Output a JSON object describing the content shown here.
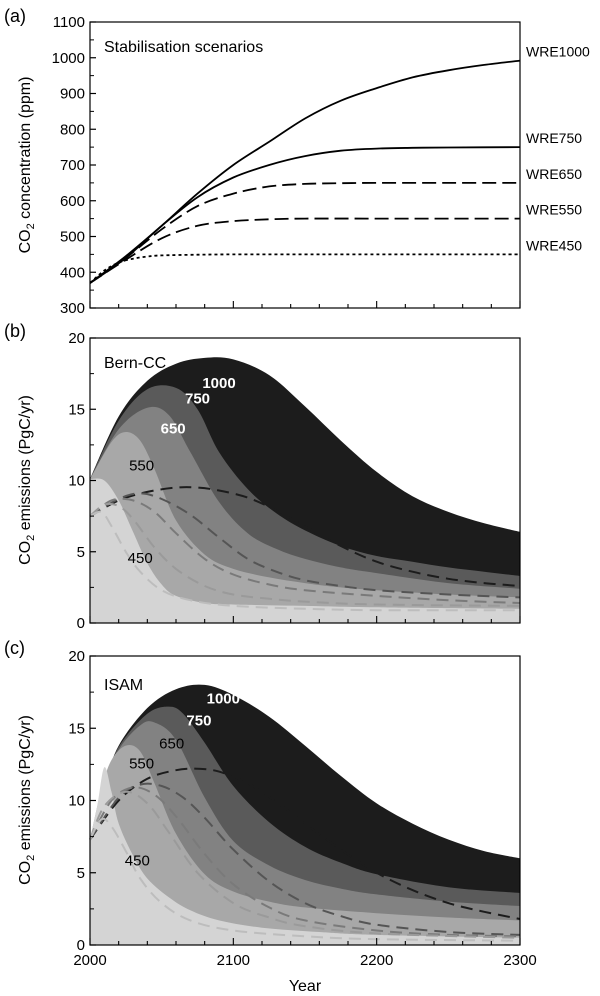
{
  "colors": {
    "band_1000": "#1c1c1c",
    "band_750": "#5a5a5a",
    "band_650": "#828282",
    "band_550": "#a8a8a8",
    "band_450": "#d4d4d4",
    "dash_1000": "#1c1c1c",
    "dash_750": "#555555",
    "dash_650": "#7a7a7a",
    "dash_550": "#9a9a9a",
    "dash_450": "#bdbdbd"
  },
  "chart_data": [
    {
      "panel": "(a)",
      "type": "line",
      "title": "Stabilisation scenarios",
      "ylabel": "CO2 concentration (ppm)",
      "ylabel_main": "CO",
      "ylabel_sub": "2",
      "ylabel_rest": " concentration (ppm)",
      "ylim": [
        300,
        1100
      ],
      "yticks": [
        "300",
        "400",
        "500",
        "600",
        "700",
        "800",
        "900",
        "1000",
        "1100"
      ],
      "xlim": [
        2000,
        2300
      ],
      "grid": false,
      "series": [
        {
          "name": "WRE1000",
          "style": "solid",
          "x": [
            2000,
            2025,
            2050,
            2075,
            2100,
            2125,
            2150,
            2175,
            2200,
            2225,
            2250,
            2275,
            2300
          ],
          "values": [
            370,
            445,
            530,
            620,
            700,
            765,
            830,
            880,
            915,
            945,
            965,
            980,
            992
          ]
        },
        {
          "name": "WRE750",
          "style": "solid",
          "x": [
            2000,
            2025,
            2050,
            2075,
            2100,
            2125,
            2150,
            2175,
            2200,
            2225,
            2250,
            2300
          ],
          "values": [
            370,
            440,
            530,
            610,
            665,
            700,
            725,
            740,
            746,
            748,
            749,
            750
          ]
        },
        {
          "name": "WRE650",
          "style": "dashed",
          "x": [
            2000,
            2025,
            2050,
            2075,
            2100,
            2125,
            2150,
            2175,
            2200,
            2250,
            2300
          ],
          "values": [
            370,
            440,
            520,
            585,
            620,
            640,
            647,
            649,
            650,
            650,
            650
          ]
        },
        {
          "name": "WRE550",
          "style": "dashed",
          "x": [
            2000,
            2025,
            2050,
            2075,
            2100,
            2125,
            2150,
            2200,
            2250,
            2300
          ],
          "values": [
            370,
            435,
            495,
            530,
            543,
            548,
            550,
            550,
            550,
            550
          ]
        },
        {
          "name": "WRE450",
          "style": "dotted",
          "x": [
            2000,
            2010,
            2020,
            2030,
            2040,
            2050,
            2075,
            2100,
            2150,
            2200,
            2300
          ],
          "values": [
            370,
            405,
            427,
            438,
            444,
            447,
            449,
            450,
            450,
            450,
            450
          ]
        }
      ]
    },
    {
      "panel": "(b)",
      "type": "area",
      "title": "Bern-CC",
      "ylabel": "CO2 emissions (PgC/yr)",
      "ylabel_main": "CO",
      "ylabel_sub": "2",
      "ylabel_rest": " emissions (PgC/yr)",
      "ylim": [
        0,
        20
      ],
      "yticks": [
        "0",
        "5",
        "10",
        "15",
        "20"
      ],
      "xlim": [
        2000,
        2300
      ],
      "grid": false,
      "bands": [
        {
          "name": "1000",
          "x": [
            2000,
            2020,
            2040,
            2060,
            2080,
            2100,
            2125,
            2150,
            2175,
            2200,
            2225,
            2250,
            2275,
            2300
          ],
          "values": [
            10.1,
            14.5,
            17.0,
            18.2,
            18.6,
            18.5,
            17.4,
            15.2,
            12.8,
            10.6,
            8.9,
            7.8,
            7.0,
            6.4
          ]
        },
        {
          "name": "750",
          "x": [
            2000,
            2020,
            2040,
            2060,
            2075,
            2090,
            2110,
            2130,
            2150,
            2175,
            2200,
            2225,
            2250,
            2275,
            2300
          ],
          "values": [
            10.1,
            14.2,
            16.4,
            16.5,
            15.0,
            12.0,
            9.4,
            7.7,
            6.5,
            5.4,
            4.7,
            4.3,
            3.9,
            3.6,
            3.3
          ]
        },
        {
          "name": "650",
          "x": [
            2000,
            2020,
            2040,
            2055,
            2070,
            2090,
            2110,
            2130,
            2150,
            2175,
            2200,
            2250,
            2300
          ],
          "values": [
            10.1,
            13.6,
            15.1,
            14.6,
            12.0,
            8.5,
            6.3,
            5.2,
            4.5,
            3.9,
            3.5,
            2.8,
            2.4
          ]
        },
        {
          "name": "550",
          "x": [
            2000,
            2015,
            2025,
            2035,
            2045,
            2060,
            2080,
            2100,
            2125,
            2150,
            2175,
            2200,
            2250,
            2300
          ],
          "values": [
            10.1,
            12.7,
            13.4,
            12.8,
            10.8,
            7.2,
            4.8,
            3.8,
            3.2,
            2.8,
            2.5,
            2.3,
            2.0,
            1.8
          ]
        },
        {
          "name": "450",
          "x": [
            2000,
            2010,
            2020,
            2030,
            2040,
            2050,
            2060,
            2080,
            2100,
            2150,
            2200,
            2300
          ],
          "values": [
            10.1,
            10.0,
            8.6,
            6.4,
            4.2,
            2.7,
            1.9,
            1.4,
            1.3,
            1.2,
            1.1,
            1.0
          ]
        }
      ],
      "dashed_series": [
        {
          "name": "1000",
          "x": [
            2000,
            2020,
            2040,
            2060,
            2075,
            2090,
            2110,
            2130,
            2150,
            2175,
            2200,
            2225,
            2250,
            2275,
            2300
          ],
          "values": [
            7.5,
            8.6,
            9.2,
            9.5,
            9.5,
            9.3,
            8.8,
            7.9,
            6.8,
            5.4,
            4.3,
            3.6,
            3.1,
            2.8,
            2.6
          ]
        },
        {
          "name": "750",
          "x": [
            2000,
            2020,
            2035,
            2050,
            2070,
            2090,
            2110,
            2130,
            2150,
            2175,
            2200,
            2250,
            2300
          ],
          "values": [
            7.5,
            8.7,
            9.1,
            8.7,
            7.6,
            6.0,
            4.5,
            3.6,
            3.0,
            2.6,
            2.3,
            2.0,
            1.8
          ]
        },
        {
          "name": "650",
          "x": [
            2000,
            2015,
            2030,
            2045,
            2060,
            2080,
            2100,
            2125,
            2150,
            2200,
            2250,
            2300
          ],
          "values": [
            7.5,
            8.6,
            8.6,
            7.8,
            6.3,
            4.5,
            3.4,
            2.7,
            2.3,
            1.9,
            1.6,
            1.4
          ]
        },
        {
          "name": "550",
          "x": [
            2000,
            2010,
            2020,
            2030,
            2045,
            2060,
            2080,
            2100,
            2125,
            2150,
            2200,
            2300
          ],
          "values": [
            7.5,
            8.3,
            8.2,
            7.3,
            5.3,
            3.8,
            2.6,
            2.0,
            1.7,
            1.5,
            1.3,
            1.2
          ]
        },
        {
          "name": "450",
          "x": [
            2000,
            2008,
            2015,
            2025,
            2035,
            2050,
            2070,
            2100,
            2150,
            2200,
            2300
          ],
          "values": [
            7.5,
            7.8,
            6.8,
            5.0,
            3.6,
            2.3,
            1.6,
            1.2,
            1.0,
            0.9,
            0.9
          ]
        }
      ],
      "band_labels": [
        {
          "text": "1000",
          "x": 2090,
          "y": 16.5,
          "white": true
        },
        {
          "text": "750",
          "x": 2075,
          "y": 15.4,
          "white": true
        },
        {
          "text": "650",
          "x": 2058,
          "y": 13.3,
          "white": true
        },
        {
          "text": "550",
          "x": 2036,
          "y": 10.7,
          "white": false
        },
        {
          "text": "450",
          "x": 2035,
          "y": 4.2,
          "white": false
        }
      ]
    },
    {
      "panel": "(c)",
      "type": "area",
      "title": "ISAM",
      "ylabel": "CO2 emissions (PgC/yr)",
      "ylabel_main": "CO",
      "ylabel_sub": "2",
      "ylabel_rest": " emissions (PgC/yr)",
      "ylim": [
        0,
        20
      ],
      "yticks": [
        "0",
        "5",
        "10",
        "15",
        "20"
      ],
      "xlim": [
        2000,
        2300
      ],
      "xlabel": "Year",
      "xticks": [
        "2000",
        "2100",
        "2200",
        "2300"
      ],
      "grid": false,
      "bands": [
        {
          "name": "1000",
          "x": [
            2000,
            2010,
            2020,
            2040,
            2060,
            2080,
            2100,
            2125,
            2150,
            2175,
            2200,
            2225,
            2250,
            2275,
            2300
          ],
          "values": [
            7.3,
            11.0,
            13.8,
            16.4,
            17.7,
            18.0,
            17.3,
            15.8,
            13.8,
            11.7,
            9.8,
            8.4,
            7.3,
            6.5,
            6.0
          ]
        },
        {
          "name": "750",
          "x": [
            2000,
            2010,
            2020,
            2040,
            2055,
            2065,
            2080,
            2100,
            2125,
            2150,
            2175,
            2200,
            2250,
            2300
          ],
          "values": [
            7.3,
            11.0,
            13.7,
            16.0,
            16.5,
            16.0,
            14.0,
            11.0,
            8.5,
            6.8,
            5.7,
            4.9,
            4.0,
            3.6
          ]
        },
        {
          "name": "650",
          "x": [
            2000,
            2010,
            2020,
            2035,
            2045,
            2060,
            2080,
            2100,
            2125,
            2150,
            2175,
            2200,
            2250,
            2300
          ],
          "values": [
            7.3,
            11.0,
            13.5,
            15.2,
            15.4,
            14.2,
            10.2,
            7.2,
            5.5,
            4.5,
            3.9,
            3.5,
            3.0,
            2.7
          ]
        },
        {
          "name": "550",
          "x": [
            2000,
            2008,
            2015,
            2025,
            2035,
            2045,
            2060,
            2080,
            2100,
            2125,
            2150,
            2200,
            2250,
            2300
          ],
          "values": [
            7.3,
            10.8,
            12.8,
            13.8,
            13.4,
            11.2,
            7.7,
            4.9,
            3.7,
            3.0,
            2.6,
            2.2,
            1.9,
            1.7
          ]
        },
        {
          "name": "450",
          "x": [
            2000,
            2005,
            2010,
            2015,
            2020,
            2030,
            2040,
            2055,
            2070,
            2090,
            2120,
            2160,
            2200,
            2300
          ],
          "values": [
            7.3,
            9.6,
            12.3,
            10.6,
            8.4,
            6.2,
            4.6,
            3.3,
            2.4,
            1.7,
            1.2,
            0.9,
            0.7,
            0.5
          ]
        }
      ],
      "dashed_series": [
        {
          "name": "1000",
          "x": [
            2000,
            2020,
            2040,
            2060,
            2075,
            2090,
            2110,
            2130,
            2150,
            2175,
            2200,
            2225,
            2250,
            2275,
            2300
          ],
          "values": [
            7.3,
            10.0,
            11.5,
            12.1,
            12.2,
            12.0,
            11.2,
            9.9,
            8.4,
            6.6,
            5.0,
            3.8,
            2.9,
            2.3,
            1.8
          ]
        },
        {
          "name": "750",
          "x": [
            2000,
            2020,
            2035,
            2050,
            2065,
            2080,
            2100,
            2125,
            2150,
            2175,
            2200,
            2250,
            2300
          ],
          "values": [
            7.3,
            10.2,
            11.1,
            11.0,
            10.2,
            8.8,
            6.6,
            4.4,
            2.9,
            2.0,
            1.4,
            0.9,
            0.7
          ]
        },
        {
          "name": "650",
          "x": [
            2000,
            2015,
            2030,
            2045,
            2060,
            2080,
            2100,
            2125,
            2150,
            2200,
            2250,
            2300
          ],
          "values": [
            7.3,
            10.0,
            10.9,
            10.4,
            8.9,
            6.3,
            4.2,
            2.6,
            1.7,
            1.0,
            0.7,
            0.6
          ]
        },
        {
          "name": "550",
          "x": [
            2000,
            2010,
            2025,
            2040,
            2055,
            2075,
            2100,
            2125,
            2150,
            2200,
            2300
          ],
          "values": [
            7.3,
            9.6,
            10.6,
            9.8,
            7.8,
            5.0,
            2.9,
            1.9,
            1.3,
            0.8,
            0.5
          ]
        },
        {
          "name": "450",
          "x": [
            2000,
            2008,
            2015,
            2025,
            2035,
            2050,
            2070,
            2100,
            2150,
            2200,
            2300
          ],
          "values": [
            7.3,
            8.7,
            8.2,
            6.5,
            4.6,
            2.9,
            1.7,
            1.0,
            0.6,
            0.4,
            0.3
          ]
        }
      ],
      "band_labels": [
        {
          "text": "1000",
          "x": 2093,
          "y": 16.7,
          "white": true
        },
        {
          "text": "750",
          "x": 2076,
          "y": 15.2,
          "white": true
        },
        {
          "text": "650",
          "x": 2057,
          "y": 13.6,
          "white": false
        },
        {
          "text": "550",
          "x": 2036,
          "y": 12.2,
          "white": false
        },
        {
          "text": "450",
          "x": 2033,
          "y": 5.5,
          "white": false
        }
      ]
    }
  ]
}
